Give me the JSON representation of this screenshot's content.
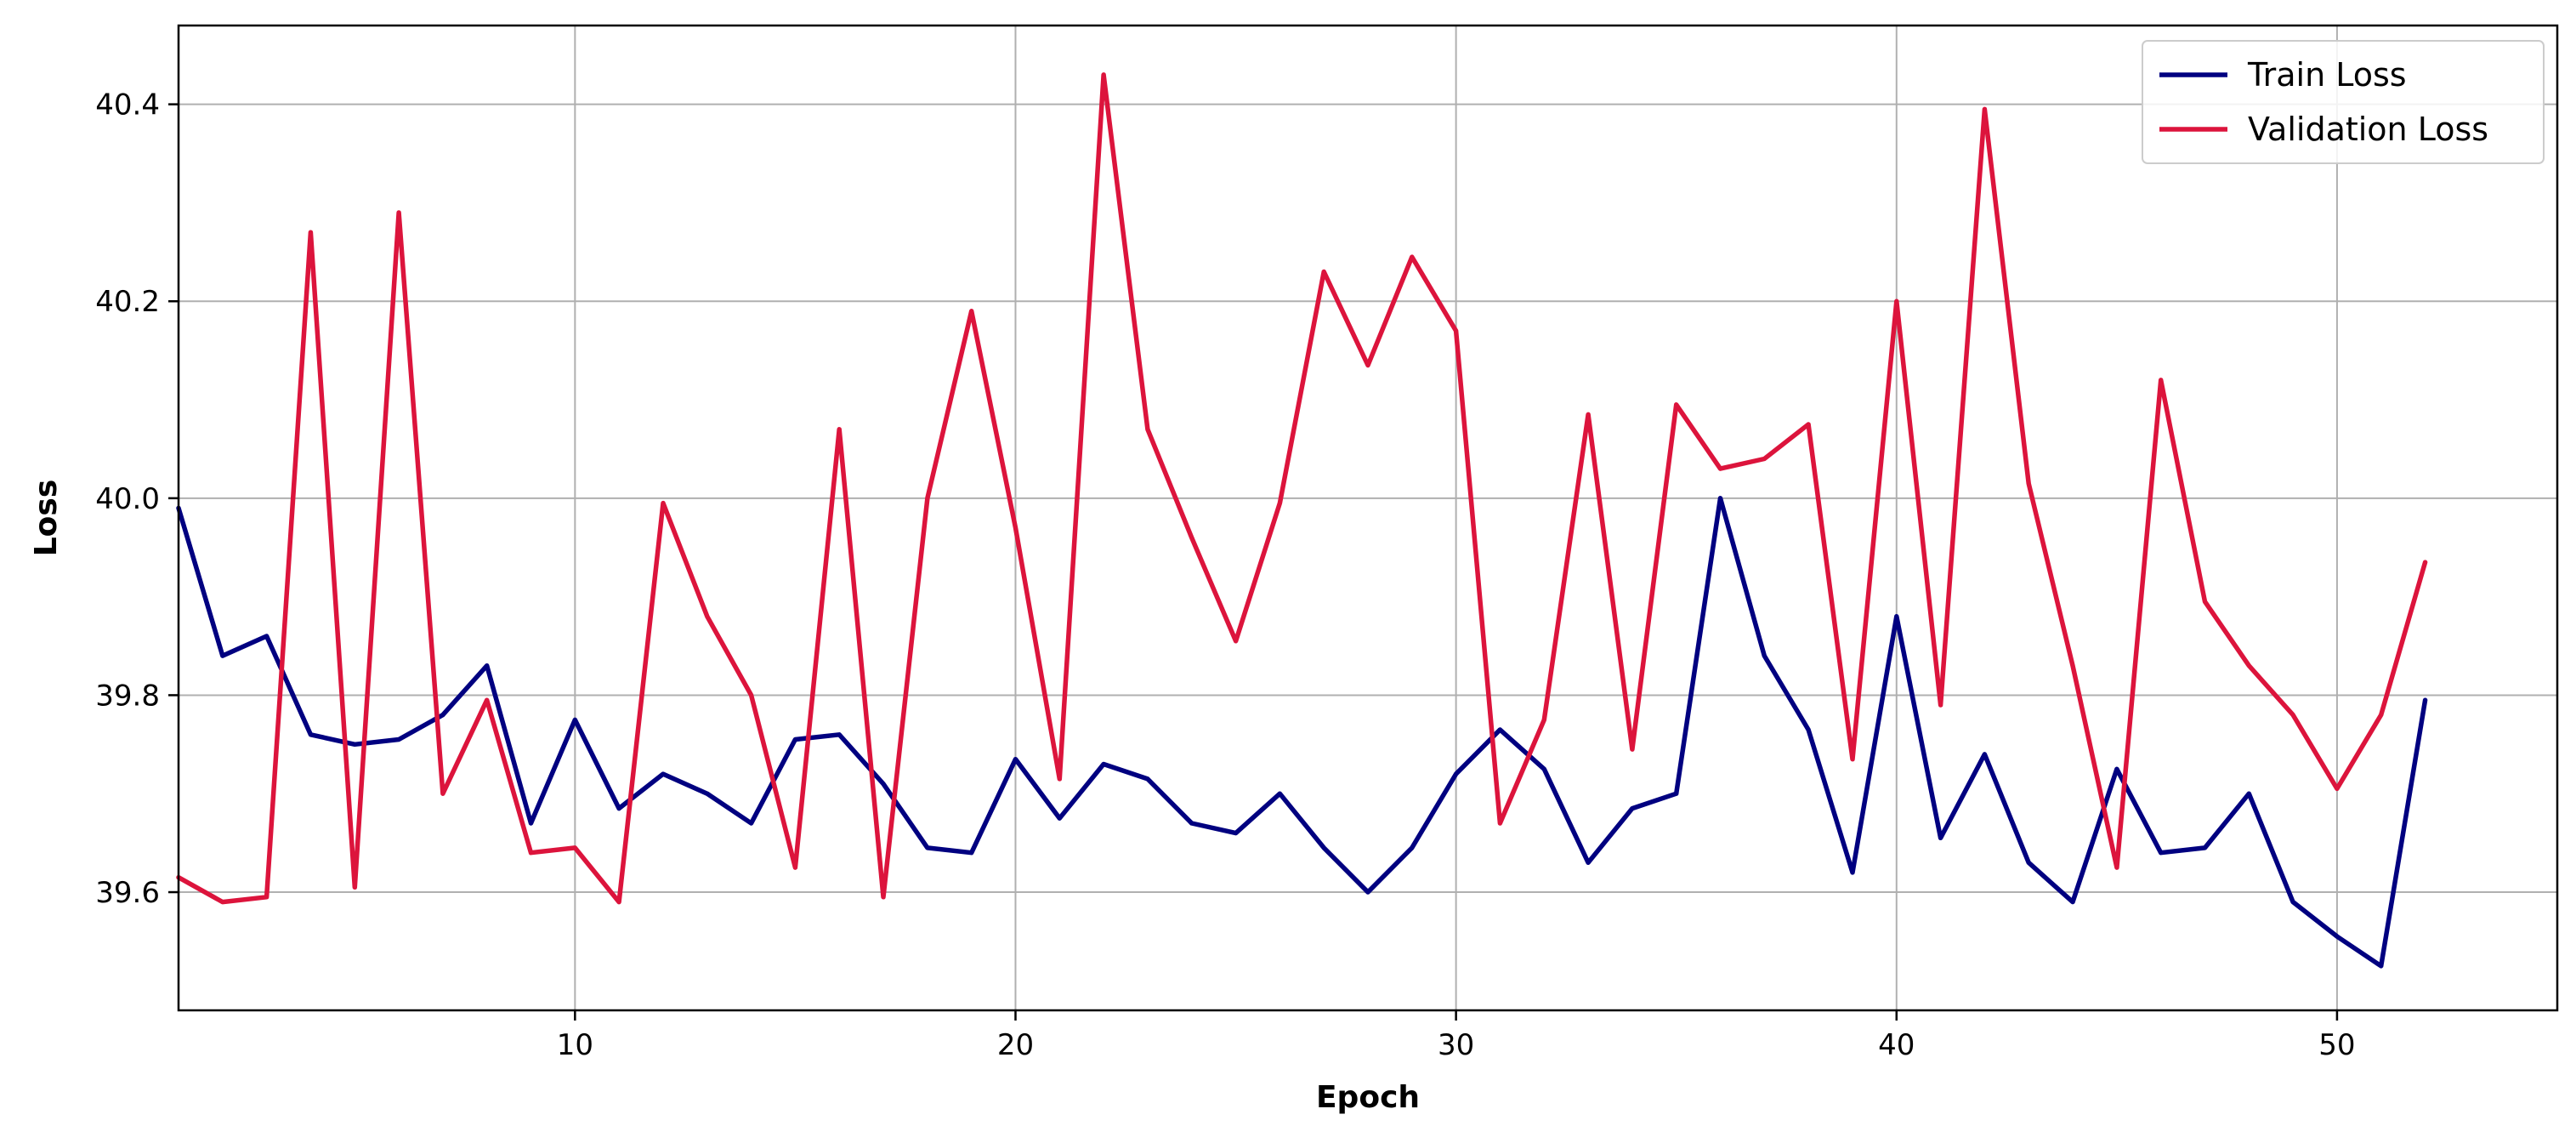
{
  "chart_data": {
    "type": "line",
    "xlabel": "Epoch",
    "ylabel": "Loss",
    "xlim": [
      1,
      55
    ],
    "ylim": [
      39.48,
      40.48
    ],
    "xticks": [
      10,
      20,
      30,
      40,
      50
    ],
    "yticks": [
      39.6,
      39.8,
      40.0,
      40.2,
      40.4
    ],
    "grid": true,
    "legend_position": "top-right",
    "x": [
      1,
      2,
      3,
      4,
      5,
      6,
      7,
      8,
      9,
      10,
      11,
      12,
      13,
      14,
      15,
      16,
      17,
      18,
      19,
      20,
      21,
      22,
      23,
      24,
      25,
      26,
      27,
      28,
      29,
      30,
      31,
      32,
      33,
      34,
      35,
      36,
      37,
      38,
      39,
      40,
      41,
      42,
      43,
      44,
      45,
      46,
      47,
      48,
      49,
      50,
      51,
      52
    ],
    "series": [
      {
        "name": "Train Loss",
        "color": "#000080",
        "values": [
          39.99,
          39.84,
          39.86,
          39.76,
          39.75,
          39.755,
          39.78,
          39.83,
          39.67,
          39.775,
          39.685,
          39.72,
          39.7,
          39.67,
          39.755,
          39.76,
          39.71,
          39.645,
          39.64,
          39.735,
          39.675,
          39.73,
          39.715,
          39.67,
          39.66,
          39.7,
          39.645,
          39.6,
          39.645,
          39.72,
          39.765,
          39.725,
          39.63,
          39.685,
          39.7,
          40.0,
          39.84,
          39.765,
          39.62,
          39.88,
          39.655,
          39.74,
          39.63,
          39.59,
          39.725,
          39.64,
          39.645,
          39.7,
          39.59,
          39.555,
          39.525,
          39.795
        ]
      },
      {
        "name": "Validation Loss",
        "color": "#dc143c",
        "values": [
          39.615,
          39.59,
          39.595,
          40.27,
          39.605,
          40.29,
          39.7,
          39.795,
          39.64,
          39.645,
          39.59,
          39.995,
          39.88,
          39.8,
          39.625,
          40.07,
          39.595,
          40.0,
          40.19,
          39.97,
          39.715,
          40.43,
          40.07,
          39.96,
          39.855,
          39.995,
          40.23,
          40.135,
          40.245,
          40.17,
          39.67,
          39.775,
          40.085,
          39.745,
          40.095,
          40.03,
          40.04,
          40.075,
          39.735,
          40.2,
          39.79,
          40.395,
          40.015,
          39.83,
          39.625,
          40.12,
          39.895,
          39.83,
          39.78,
          39.705,
          39.78,
          39.935
        ]
      }
    ]
  }
}
